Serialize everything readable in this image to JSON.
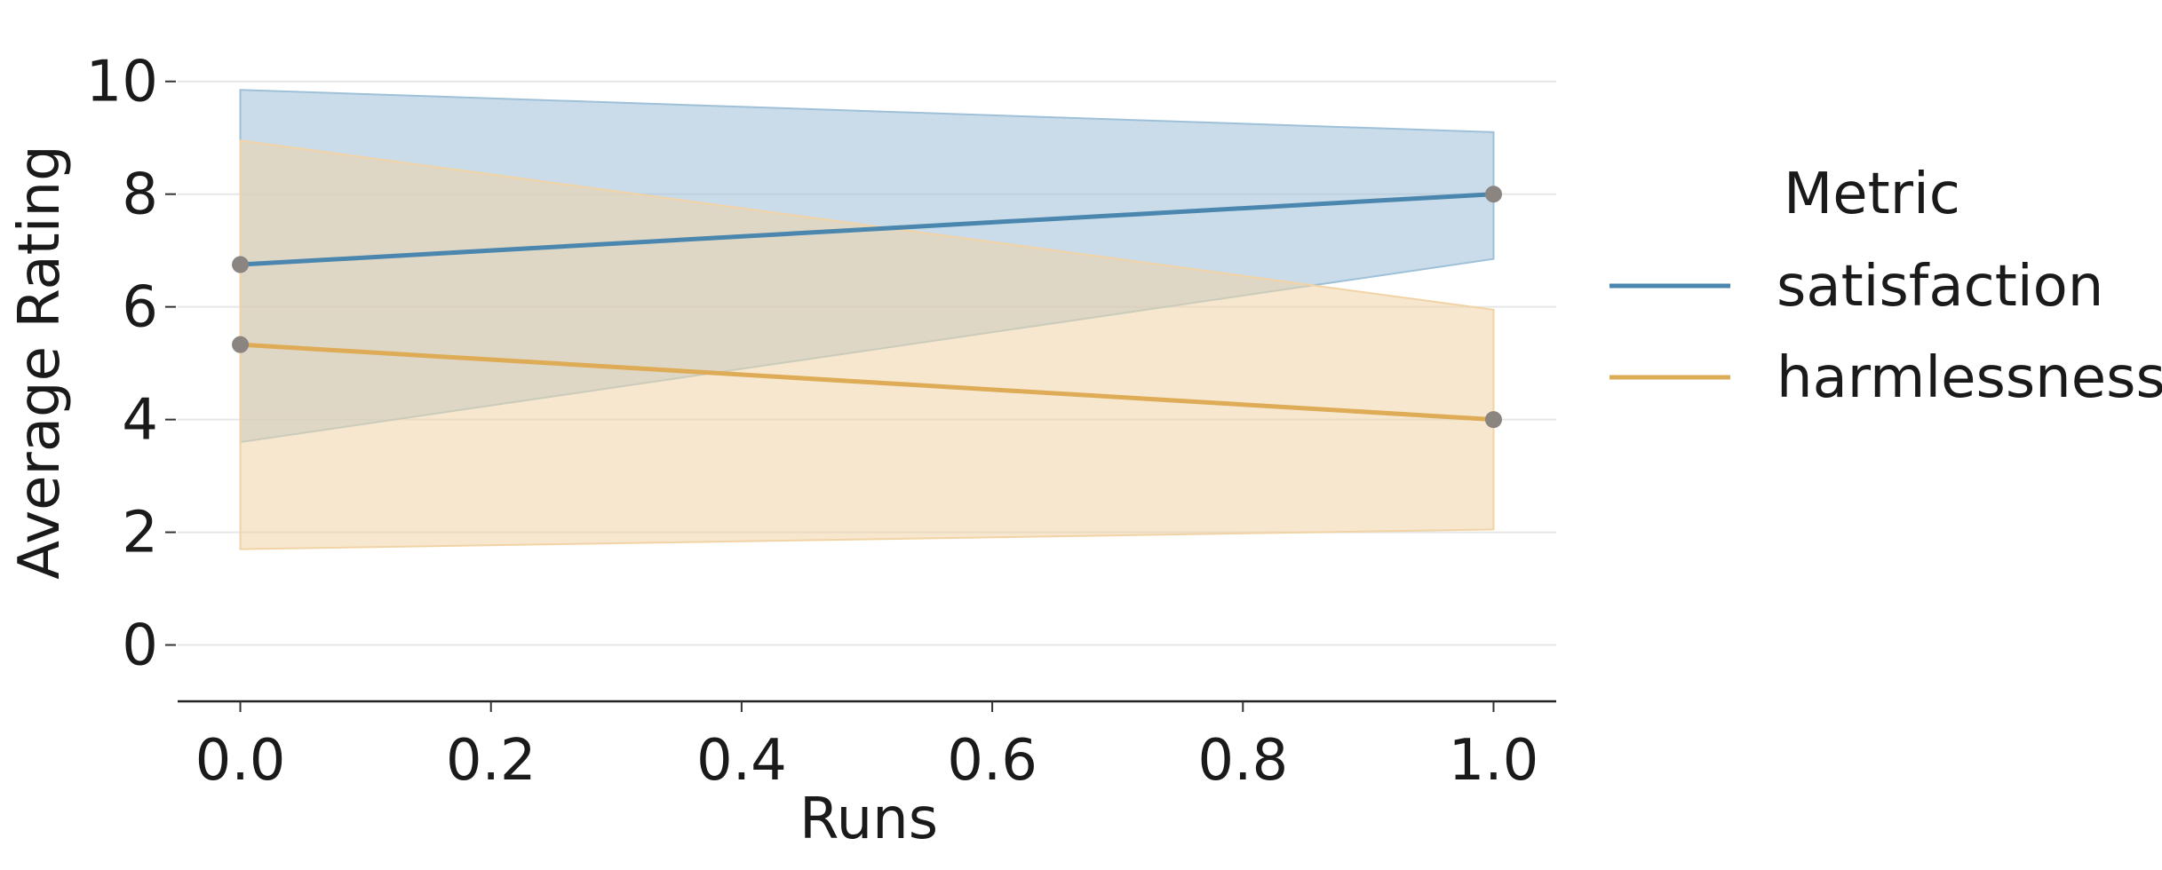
{
  "chart_data": {
    "type": "line",
    "xlabel": "Runs",
    "ylabel": "Average Rating",
    "xlim": [
      -0.05,
      1.05
    ],
    "ylim": [
      -1,
      10.5
    ],
    "xticks": [
      0.0,
      0.2,
      0.4,
      0.6,
      0.8,
      1.0
    ],
    "xtick_labels": [
      "0.0",
      "0.2",
      "0.4",
      "0.6",
      "0.8",
      "1.0"
    ],
    "yticks": [
      0,
      2,
      4,
      6,
      8,
      10
    ],
    "ytick_labels": [
      "0",
      "2",
      "4",
      "6",
      "8",
      "10"
    ],
    "grid": "horizontal",
    "legend": {
      "title": "Metric",
      "placement": "right, outside"
    },
    "series": [
      {
        "name": "satisfaction",
        "color": "#4a86ad",
        "band_color": "#9ec0d8",
        "x": [
          0.0,
          1.0
        ],
        "y": [
          6.75,
          8.0
        ],
        "ci_low": [
          3.6,
          6.85
        ],
        "ci_high": [
          9.85,
          9.1
        ]
      },
      {
        "name": "harmlessness",
        "color": "#deab56",
        "band_color": "#f1d3a6",
        "x": [
          0.0,
          1.0
        ],
        "y": [
          5.33,
          4.0
        ],
        "ci_low": [
          1.7,
          2.05
        ],
        "ci_high": [
          8.95,
          5.95
        ]
      }
    ],
    "marker_color": "#8a8580"
  }
}
